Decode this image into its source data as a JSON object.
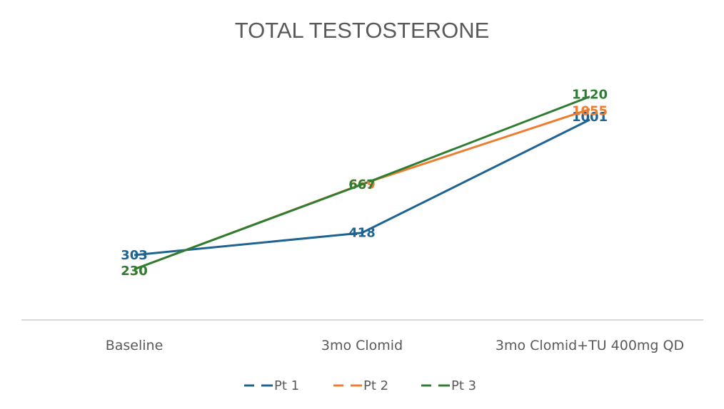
{
  "chart_data": {
    "type": "line",
    "title": "TOTAL TESTOSTERONE",
    "xlabel": "",
    "ylabel": "",
    "categories": [
      "Baseline",
      "3mo Clomid",
      "3mo Clomid+TU 400mg QD"
    ],
    "ylim": [
      0,
      1200
    ],
    "grid": false,
    "y_axis_visible": false,
    "legend": "bottom",
    "data_labels": true,
    "series": [
      {
        "name": "Pt 1",
        "color": "#1f6391",
        "values": [
          303,
          418,
          1001
        ]
      },
      {
        "name": "Pt 2",
        "color": "#ed7d31",
        "values": [
          230,
          669,
          1055
        ]
      },
      {
        "name": "Pt 3",
        "color": "#2e7d32",
        "values": [
          230,
          667,
          1120
        ]
      }
    ],
    "axis_color": "#d9d9d9",
    "text_color": "#595959"
  }
}
